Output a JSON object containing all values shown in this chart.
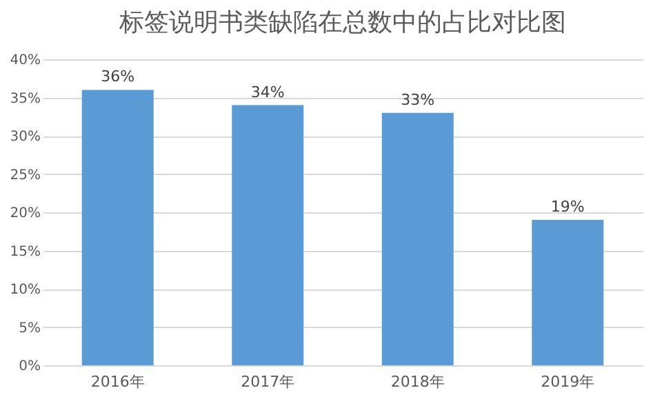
{
  "chart_data": {
    "type": "bar",
    "title": "标签说明书类缺陷在总数中的占比对比图",
    "categories": [
      "2016年",
      "2017年",
      "2018年",
      "2019年"
    ],
    "values": [
      36,
      34,
      33,
      19
    ],
    "value_labels": [
      "36%",
      "34%",
      "33%",
      "19%"
    ],
    "color": "#5b9bd5",
    "ylim": [
      0,
      40
    ],
    "yticks": [
      {
        "value": 0,
        "label": "0%"
      },
      {
        "value": 5,
        "label": "5%"
      },
      {
        "value": 10,
        "label": "10%"
      },
      {
        "value": 15,
        "label": "15%"
      },
      {
        "value": 20,
        "label": "20%"
      },
      {
        "value": 25,
        "label": "25%"
      },
      {
        "value": 30,
        "label": "30%"
      },
      {
        "value": 35,
        "label": "35%"
      },
      {
        "value": 40,
        "label": "40%"
      }
    ],
    "grid": "y"
  }
}
